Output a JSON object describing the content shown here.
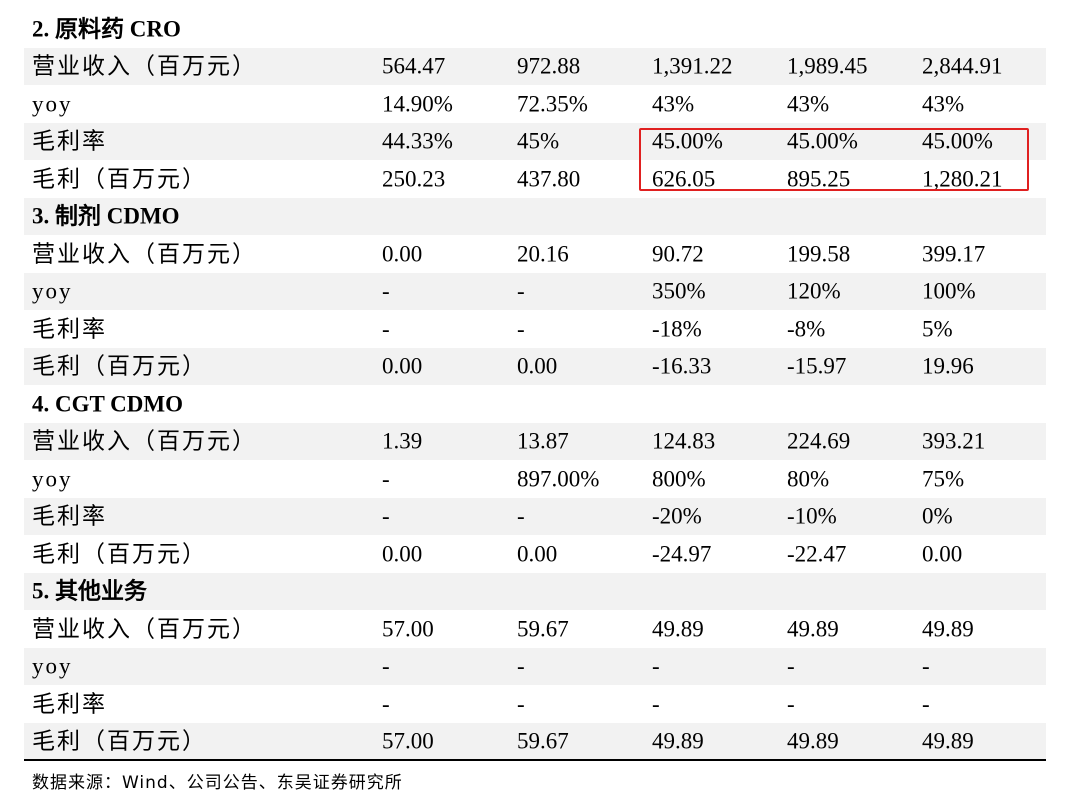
{
  "sections": [
    {
      "title": "2. 原料药 CRO",
      "rows": [
        {
          "label": "营业收入（百万元）",
          "values": [
            "564.47",
            "972.88",
            "1,391.22",
            "1,989.45",
            "2,844.91"
          ]
        },
        {
          "label": "yoy",
          "values": [
            "14.90%",
            "72.35%",
            "43%",
            "43%",
            "43%"
          ]
        },
        {
          "label": "毛利率",
          "values": [
            "44.33%",
            "45%",
            "45.00%",
            "45.00%",
            "45.00%"
          ]
        },
        {
          "label": "毛利（百万元）",
          "values": [
            "250.23",
            "437.80",
            "626.05",
            "895.25",
            "1,280.21"
          ]
        }
      ]
    },
    {
      "title": "3. 制剂 CDMO",
      "rows": [
        {
          "label": "营业收入（百万元）",
          "values": [
            "0.00",
            "20.16",
            "90.72",
            "199.58",
            "399.17"
          ]
        },
        {
          "label": "yoy",
          "values": [
            "-",
            "-",
            "350%",
            "120%",
            "100%"
          ]
        },
        {
          "label": "毛利率",
          "values": [
            "-",
            "-",
            "-18%",
            "-8%",
            "5%"
          ]
        },
        {
          "label": "毛利（百万元）",
          "values": [
            "0.00",
            "0.00",
            "-16.33",
            "-15.97",
            "19.96"
          ]
        }
      ]
    },
    {
      "title": "4. CGT CDMO",
      "rows": [
        {
          "label": "营业收入（百万元）",
          "values": [
            "1.39",
            "13.87",
            "124.83",
            "224.69",
            "393.21"
          ]
        },
        {
          "label": "yoy",
          "values": [
            "-",
            "897.00%",
            "800%",
            "80%",
            "75%"
          ]
        },
        {
          "label": "毛利率",
          "values": [
            "-",
            "-",
            "-20%",
            "-10%",
            "0%"
          ]
        },
        {
          "label": "毛利（百万元）",
          "values": [
            "0.00",
            "0.00",
            "-24.97",
            "-22.47",
            "0.00"
          ]
        }
      ]
    },
    {
      "title": "5. 其他业务",
      "rows": [
        {
          "label": "营业收入（百万元）",
          "values": [
            "57.00",
            "59.67",
            "49.89",
            "49.89",
            "49.89"
          ]
        },
        {
          "label": "yoy",
          "values": [
            "-",
            "-",
            "-",
            "-",
            "-"
          ]
        },
        {
          "label": "毛利率",
          "values": [
            "-",
            "-",
            "-",
            "-",
            "-"
          ]
        },
        {
          "label": "毛利（百万元）",
          "values": [
            "57.00",
            "59.67",
            "49.89",
            "49.89",
            "49.89"
          ]
        }
      ]
    }
  ],
  "source": "数据来源：Wind、公司公告、东吴证券研究所",
  "colors": {
    "shade": "#f2f2f2",
    "highlight_border": "#e02020"
  }
}
